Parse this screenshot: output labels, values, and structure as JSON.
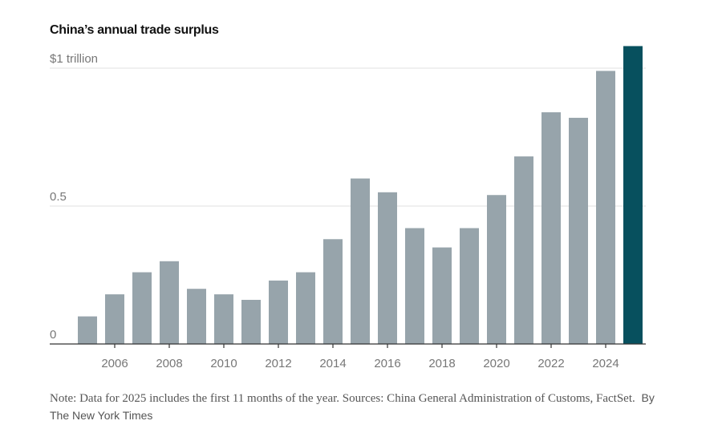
{
  "chart_data": {
    "type": "bar",
    "title": "China’s annual trade surplus",
    "xlabel": "",
    "ylabel": "",
    "unit": "trillion USD",
    "categories": [
      "2005",
      "2006",
      "2007",
      "2008",
      "2009",
      "2010",
      "2011",
      "2012",
      "2013",
      "2014",
      "2015",
      "2016",
      "2017",
      "2018",
      "2019",
      "2020",
      "2021",
      "2022",
      "2023",
      "2024",
      "2025"
    ],
    "values": [
      0.1,
      0.18,
      0.26,
      0.3,
      0.2,
      0.18,
      0.16,
      0.23,
      0.26,
      0.38,
      0.6,
      0.55,
      0.42,
      0.35,
      0.42,
      0.54,
      0.68,
      0.84,
      0.82,
      0.99,
      1.08
    ],
    "highlight": "2025",
    "ylim": [
      0,
      1
    ],
    "yticks": [
      {
        "value": 0,
        "label": "0"
      },
      {
        "value": 0.5,
        "label": "0.5"
      },
      {
        "value": 1,
        "label": "$1 trillion"
      }
    ],
    "xticks": [
      "2006",
      "2008",
      "2010",
      "2012",
      "2014",
      "2016",
      "2018",
      "2020",
      "2022",
      "2024"
    ],
    "grid": true,
    "colors": {
      "bar": "#97a4ab",
      "highlight": "#07505e",
      "grid": "#e2e2e2",
      "axis": "#333333",
      "label": "#777777"
    }
  },
  "note": {
    "note_text": "Note: Data for 2025 includes the first 11 months of the year.  Sources: China General Administration of Customs, FactSet.",
    "byline": "By The New York Times"
  }
}
